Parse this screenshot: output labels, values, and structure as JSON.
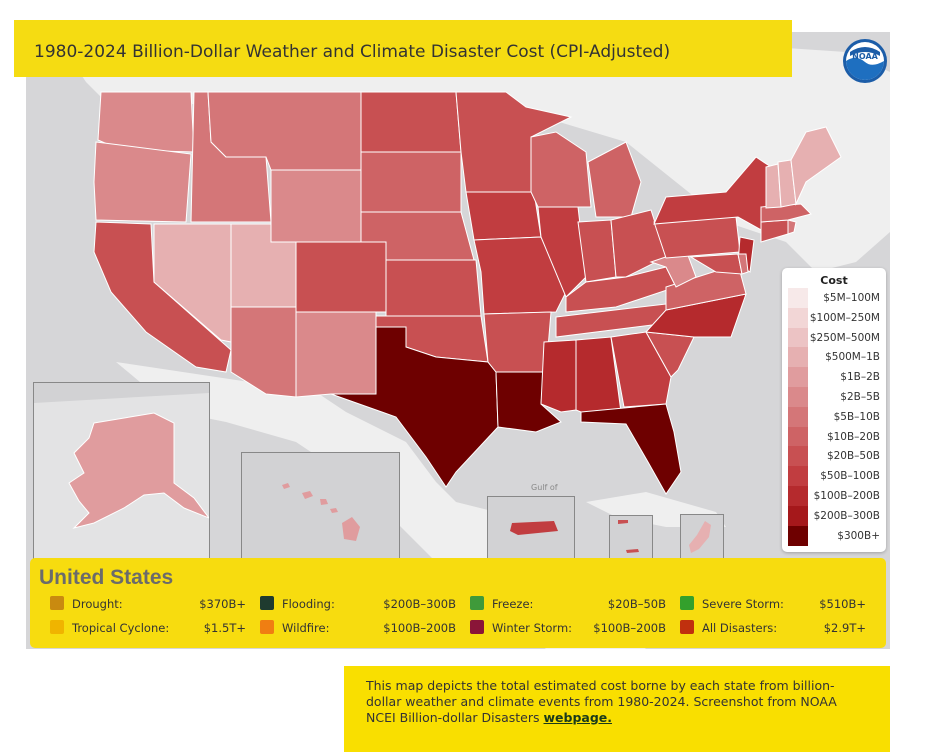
{
  "title": "1980-2024 Billion-Dollar Weather and Climate Disaster Cost (CPI-Adjusted)",
  "logo": {
    "text": "NOAA",
    "icon": "noaa-logo"
  },
  "legend": {
    "title": "Cost",
    "bins": [
      {
        "label": "$5M–100M",
        "color": "#f7e9e9"
      },
      {
        "label": "$100M–250M",
        "color": "#f2d6d6"
      },
      {
        "label": "$250M–500M",
        "color": "#ecc3c4"
      },
      {
        "label": "$500M–1B",
        "color": "#e6b0b1"
      },
      {
        "label": "$1B–2B",
        "color": "#e09c9e"
      },
      {
        "label": "$2B–5B",
        "color": "#da898b"
      },
      {
        "label": "$5B–10B",
        "color": "#d47678"
      },
      {
        "label": "$10B–20B",
        "color": "#ce6365"
      },
      {
        "label": "$20B–50B",
        "color": "#c85052"
      },
      {
        "label": "$50B–100B",
        "color": "#c13d40"
      },
      {
        "label": "$100B–200B",
        "color": "#b52a2d"
      },
      {
        "label": "$200B–300B",
        "color": "#a5181b"
      },
      {
        "label": "$300B+",
        "color": "#6e0000"
      }
    ]
  },
  "summary": {
    "title": "United States",
    "categories": [
      {
        "name": "Drought:",
        "value": "$370B+",
        "color": "#c98a10"
      },
      {
        "name": "Flooding:",
        "value": "$200B–300B",
        "color": "#1f3b2f"
      },
      {
        "name": "Freeze:",
        "value": "$20B–50B",
        "color": "#3f9a3a"
      },
      {
        "name": "Severe Storm:",
        "value": "$510B+",
        "color": "#33a02c"
      },
      {
        "name": "Tropical Cyclone:",
        "value": "$1.5T+",
        "color": "#f0b400"
      },
      {
        "name": "Wildfire:",
        "value": "$100B–200B",
        "color": "#f07e12"
      },
      {
        "name": "Winter Storm:",
        "value": "$100B–200B",
        "color": "#8a1538"
      },
      {
        "name": "All Disasters:",
        "value": "$2.9T+",
        "color": "#c0300e"
      }
    ]
  },
  "caption": {
    "text": "This map depicts the total estimated cost borne by each state from billion-dollar weather and climate events from 1980-2024. Screenshot from NOAA NCEI Billion-dollar Disasters ",
    "link_text": "webpage."
  },
  "map_labels": {
    "gulf": "Gulf of"
  }
}
